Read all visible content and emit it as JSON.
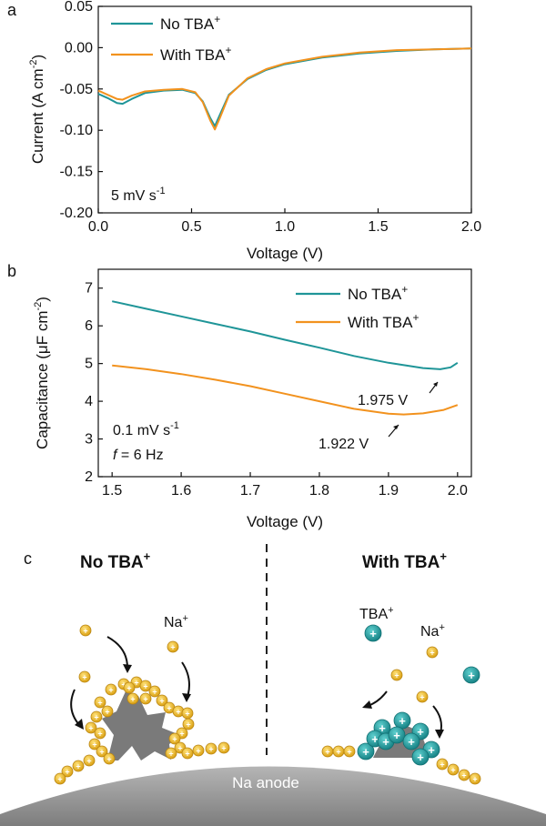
{
  "chart_data": [
    {
      "panel": "a",
      "type": "line",
      "xlabel": "Voltage (V)",
      "ylabel": "Current (A cm",
      "ylabel_sup": "-2",
      "ylabel_end": ")",
      "xlim": [
        0.0,
        2.0
      ],
      "ylim": [
        -0.2,
        0.05
      ],
      "xticks": [
        "0.0",
        "0.5",
        "1.0",
        "1.5",
        "2.0"
      ],
      "xtick_values": [
        0.0,
        0.5,
        1.0,
        1.5,
        2.0
      ],
      "yticks": [
        "0.05",
        "0.00",
        "-0.05",
        "-0.10",
        "-0.15",
        "-0.20"
      ],
      "ytick_values": [
        0.05,
        0.0,
        -0.05,
        -0.1,
        -0.15,
        -0.2
      ],
      "annotation": {
        "text": "5 mV s",
        "sup": "-1"
      },
      "series": [
        {
          "name": "No TBA",
          "sup": "+",
          "color": "#1f9598",
          "x": [
            0.0,
            0.05,
            0.1,
            0.13,
            0.18,
            0.25,
            0.35,
            0.45,
            0.52,
            0.56,
            0.6,
            0.625,
            0.65,
            0.7,
            0.8,
            0.9,
            1.0,
            1.2,
            1.4,
            1.6,
            1.8,
            2.0
          ],
          "y": [
            -0.056,
            -0.061,
            -0.067,
            -0.068,
            -0.062,
            -0.055,
            -0.052,
            -0.051,
            -0.055,
            -0.065,
            -0.085,
            -0.095,
            -0.082,
            -0.057,
            -0.038,
            -0.027,
            -0.02,
            -0.012,
            -0.007,
            -0.004,
            -0.002,
            -0.001
          ]
        },
        {
          "name": "With TBA",
          "sup": "+",
          "color": "#f2921e",
          "x": [
            0.0,
            0.05,
            0.1,
            0.13,
            0.18,
            0.25,
            0.35,
            0.45,
            0.52,
            0.56,
            0.6,
            0.625,
            0.65,
            0.7,
            0.8,
            0.9,
            1.0,
            1.2,
            1.4,
            1.6,
            1.8,
            2.0
          ],
          "y": [
            -0.052,
            -0.057,
            -0.062,
            -0.063,
            -0.058,
            -0.053,
            -0.051,
            -0.05,
            -0.054,
            -0.066,
            -0.088,
            -0.099,
            -0.086,
            -0.058,
            -0.037,
            -0.026,
            -0.019,
            -0.011,
            -0.006,
            -0.003,
            -0.002,
            -0.001
          ]
        }
      ]
    },
    {
      "panel": "b",
      "type": "line",
      "xlabel": "Voltage (V)",
      "ylabel": "Capacitance (μF cm",
      "ylabel_sup": "-2",
      "ylabel_end": ")",
      "xlim": [
        1.48,
        2.02
      ],
      "ylim": [
        2,
        7.5
      ],
      "xticks": [
        "1.5",
        "1.6",
        "1.7",
        "1.8",
        "1.9",
        "2.0"
      ],
      "xtick_values": [
        1.5,
        1.6,
        1.7,
        1.8,
        1.9,
        2.0
      ],
      "yticks": [
        "2",
        "3",
        "4",
        "5",
        "6",
        "7"
      ],
      "ytick_values": [
        2,
        3,
        4,
        5,
        6,
        7
      ],
      "annotation": {
        "line1": "0.1 mV s",
        "line1_sup": "-1",
        "line2_italic": "f",
        "line2_rest": " = 6 Hz"
      },
      "labels": [
        {
          "text": "1.975 V",
          "x": 1.975,
          "y": 4.85
        },
        {
          "text": "1.922 V",
          "x": 1.922,
          "y": 3.65
        }
      ],
      "series": [
        {
          "name": "No TBA",
          "sup": "+",
          "color": "#1f9598",
          "x": [
            1.5,
            1.55,
            1.6,
            1.65,
            1.7,
            1.75,
            1.8,
            1.85,
            1.9,
            1.95,
            1.975,
            1.99,
            2.0
          ],
          "y": [
            6.65,
            6.45,
            6.25,
            6.05,
            5.85,
            5.63,
            5.42,
            5.2,
            5.02,
            4.88,
            4.85,
            4.9,
            5.02
          ]
        },
        {
          "name": "With TBA",
          "sup": "+",
          "color": "#f2921e",
          "x": [
            1.5,
            1.55,
            1.6,
            1.65,
            1.7,
            1.75,
            1.8,
            1.85,
            1.9,
            1.922,
            1.95,
            1.98,
            2.0
          ],
          "y": [
            4.95,
            4.85,
            4.72,
            4.57,
            4.4,
            4.2,
            4.0,
            3.8,
            3.67,
            3.65,
            3.68,
            3.77,
            3.9
          ]
        }
      ]
    }
  ],
  "diagram": {
    "panel": "c",
    "left_title": "No TBA",
    "left_title_sup": "+",
    "right_title": "With TBA",
    "right_title_sup": "+",
    "na_label": "Na",
    "na_sup": "+",
    "tba_label": "TBA",
    "tba_sup": "+",
    "anode_label": "Na anode",
    "ion_symbol": "+",
    "colors": {
      "na": "#e8b21a",
      "tba": "#1a9a9c",
      "substrate": "#8a8a8a",
      "dendrite": "#7a7a7a"
    }
  }
}
